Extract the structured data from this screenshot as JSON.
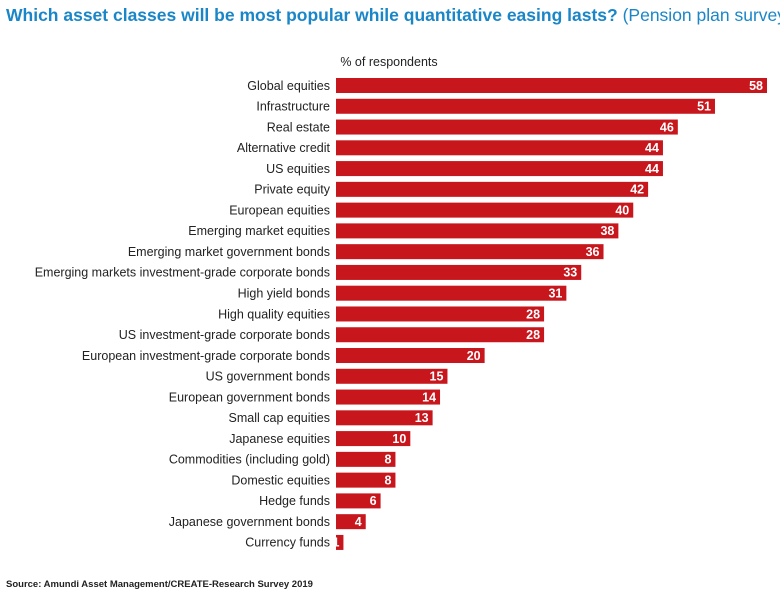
{
  "title": "Which asset classes will be most popular while quantitative easing lasts?",
  "subtitle": "(Pension plan survey)",
  "source": "Source: Amundi Asset Management/CREATE-Research Survey 2019",
  "colors": {
    "title": "#1a86c8",
    "bar": "#c8161d",
    "bar_label": "#ffffff",
    "text": "#222222"
  },
  "chart_data": {
    "type": "bar",
    "orientation": "horizontal",
    "title": "Which asset classes will be most popular while quantitative easing lasts?",
    "subtitle": "(Pension plan survey)",
    "xlabel": "% of respondents",
    "ylabel": "",
    "xlim": [
      0,
      58
    ],
    "grid": false,
    "legend": "none",
    "data_labels": true,
    "categories": [
      "Global equities",
      "Infrastructure",
      "Real estate",
      "Alternative credit",
      "US equities",
      "Private equity",
      "European equities",
      "Emerging market equities",
      "Emerging market government bonds",
      "Emerging markets investment-grade corporate bonds",
      "High yield bonds",
      "High quality equities",
      "US investment-grade corporate bonds",
      "European investment-grade corporate bonds",
      "US government bonds",
      "European government bonds",
      "Small cap equities",
      "Japanese equities",
      "Commodities (including gold)",
      "Domestic equities",
      "Hedge funds",
      "Japanese government bonds",
      "Currency funds"
    ],
    "values": [
      58,
      51,
      46,
      44,
      44,
      42,
      40,
      38,
      36,
      33,
      31,
      28,
      28,
      20,
      15,
      14,
      13,
      10,
      8,
      8,
      6,
      4,
      1
    ]
  }
}
